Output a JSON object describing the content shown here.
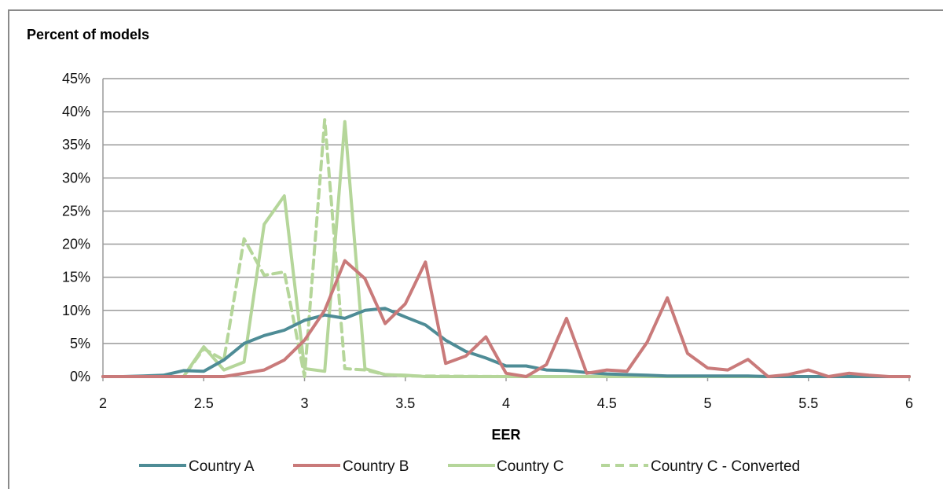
{
  "chart_data": {
    "type": "line",
    "title": "",
    "ylabel": "Percent of models",
    "xlabel": "EER",
    "xlim": [
      2,
      6
    ],
    "ylim": [
      0,
      45
    ],
    "x_ticks": [
      "2",
      "2.5",
      "3",
      "3.5",
      "4",
      "4.5",
      "5",
      "5.5",
      "6"
    ],
    "x_tick_values": [
      2,
      2.5,
      3,
      3.5,
      4,
      4.5,
      5,
      5.5,
      6
    ],
    "y_ticks": [
      "0%",
      "5%",
      "10%",
      "15%",
      "20%",
      "25%",
      "30%",
      "35%",
      "40%",
      "45%"
    ],
    "y_tick_values": [
      0,
      5,
      10,
      15,
      20,
      25,
      30,
      35,
      40,
      45
    ],
    "grid": true,
    "legend_position": "bottom",
    "series": [
      {
        "name": "Country A",
        "color": "#4e8c96",
        "dash": "solid",
        "x": [
          2.0,
          2.1,
          2.2,
          2.3,
          2.4,
          2.5,
          2.6,
          2.7,
          2.8,
          2.9,
          3.0,
          3.1,
          3.2,
          3.3,
          3.4,
          3.5,
          3.6,
          3.7,
          3.8,
          3.9,
          4.0,
          4.1,
          4.2,
          4.3,
          4.4,
          4.5,
          4.6,
          4.7,
          4.8,
          4.9,
          5.0,
          5.1,
          5.2,
          5.3,
          5.4,
          5.5,
          5.6,
          5.7,
          5.8,
          5.9,
          6.0
        ],
        "y": [
          0,
          0,
          0.1,
          0.2,
          0.9,
          0.8,
          2.5,
          5,
          6.2,
          7,
          8.5,
          9.3,
          8.8,
          10,
          10.3,
          9,
          7.8,
          5.5,
          3.8,
          2.8,
          1.6,
          1.6,
          1,
          0.9,
          0.6,
          0.4,
          0.3,
          0.2,
          0.1,
          0.1,
          0.1,
          0.1,
          0.1,
          0,
          0,
          0,
          0,
          0,
          0,
          0,
          0
        ]
      },
      {
        "name": "Country B",
        "color": "#c97a7a",
        "dash": "solid",
        "x": [
          2.0,
          2.1,
          2.2,
          2.3,
          2.4,
          2.5,
          2.6,
          2.7,
          2.8,
          2.9,
          3.0,
          3.1,
          3.2,
          3.3,
          3.4,
          3.5,
          3.6,
          3.7,
          3.8,
          3.9,
          4.0,
          4.1,
          4.2,
          4.3,
          4.4,
          4.5,
          4.6,
          4.7,
          4.8,
          4.9,
          5.0,
          5.1,
          5.2,
          5.3,
          5.4,
          5.5,
          5.6,
          5.7,
          5.8,
          5.9,
          6.0
        ],
        "y": [
          0,
          0,
          0,
          0,
          0,
          0,
          0,
          0.5,
          1,
          2.5,
          5.5,
          10,
          17.5,
          14.8,
          8,
          11,
          17.3,
          2,
          3.1,
          6,
          0.5,
          0,
          1.8,
          8.8,
          0.5,
          1,
          0.8,
          5.2,
          11.9,
          3.5,
          1.3,
          1,
          2.6,
          0,
          0.3,
          1,
          0,
          0.5,
          0.2,
          0,
          0
        ]
      },
      {
        "name": "Country C",
        "color": "#b5d69a",
        "dash": "solid",
        "x": [
          2.0,
          2.1,
          2.2,
          2.3,
          2.4,
          2.5,
          2.6,
          2.7,
          2.8,
          2.9,
          3.0,
          3.1,
          3.2,
          3.3,
          3.4,
          3.5,
          3.6,
          3.7,
          3.8,
          3.9,
          4.0,
          4.5,
          5.0,
          5.5,
          6.0
        ],
        "y": [
          0,
          0,
          0,
          0,
          0,
          4.5,
          1,
          2.2,
          23,
          27.3,
          1.2,
          0.8,
          38.5,
          1.2,
          0.3,
          0.2,
          0,
          0,
          0,
          0,
          0,
          0,
          0,
          0,
          0
        ]
      },
      {
        "name": "Country C - Converted",
        "color": "#b5d69a",
        "dash": "dashed",
        "x": [
          2.0,
          2.1,
          2.2,
          2.3,
          2.4,
          2.5,
          2.6,
          2.7,
          2.8,
          2.9,
          3.0,
          3.1,
          3.2,
          3.3,
          3.4,
          3.5,
          4.0,
          4.5,
          5.0,
          5.5,
          6.0
        ],
        "y": [
          0,
          0,
          0,
          0,
          0,
          4.2,
          2.5,
          20.8,
          15.3,
          15.8,
          0,
          38.8,
          1.2,
          1,
          0.3,
          0.1,
          0,
          0,
          0,
          0,
          0
        ]
      }
    ]
  }
}
